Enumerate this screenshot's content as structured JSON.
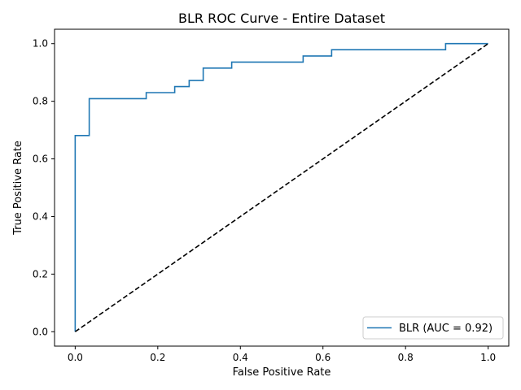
{
  "chart_data": {
    "type": "line",
    "title": "BLR ROC Curve - Entire Dataset",
    "xlabel": "False Positive Rate",
    "ylabel": "True Positive Rate",
    "xlim": [
      -0.05,
      1.05
    ],
    "ylim": [
      -0.05,
      1.05
    ],
    "xticks": [
      0.0,
      0.2,
      0.4,
      0.6,
      0.8,
      1.0
    ],
    "xtick_labels": [
      "0.0",
      "0.2",
      "0.4",
      "0.6",
      "0.8",
      "1.0"
    ],
    "yticks": [
      0.0,
      0.2,
      0.4,
      0.6,
      0.8,
      1.0
    ],
    "ytick_labels": [
      "0.0",
      "0.2",
      "0.4",
      "0.6",
      "0.8",
      "1.0"
    ],
    "grid": false,
    "legend_position": "lower-right",
    "series": [
      {
        "name": "BLR (AUC = 0.92)",
        "color": "#1f77b4",
        "style": "steps",
        "x": [
          0.0,
          0.0,
          0.034,
          0.034,
          0.172,
          0.172,
          0.241,
          0.241,
          0.276,
          0.276,
          0.31,
          0.31,
          0.379,
          0.379,
          0.552,
          0.552,
          0.621,
          0.621,
          0.897,
          0.897,
          1.0
        ],
        "y": [
          0.0,
          0.681,
          0.681,
          0.809,
          0.809,
          0.83,
          0.83,
          0.851,
          0.851,
          0.872,
          0.872,
          0.915,
          0.915,
          0.936,
          0.936,
          0.957,
          0.957,
          0.979,
          0.979,
          1.0,
          1.0
        ]
      },
      {
        "color": "#000000",
        "style": "dashed",
        "x": [
          0.0,
          1.0
        ],
        "y": [
          0.0,
          1.0
        ]
      }
    ]
  }
}
